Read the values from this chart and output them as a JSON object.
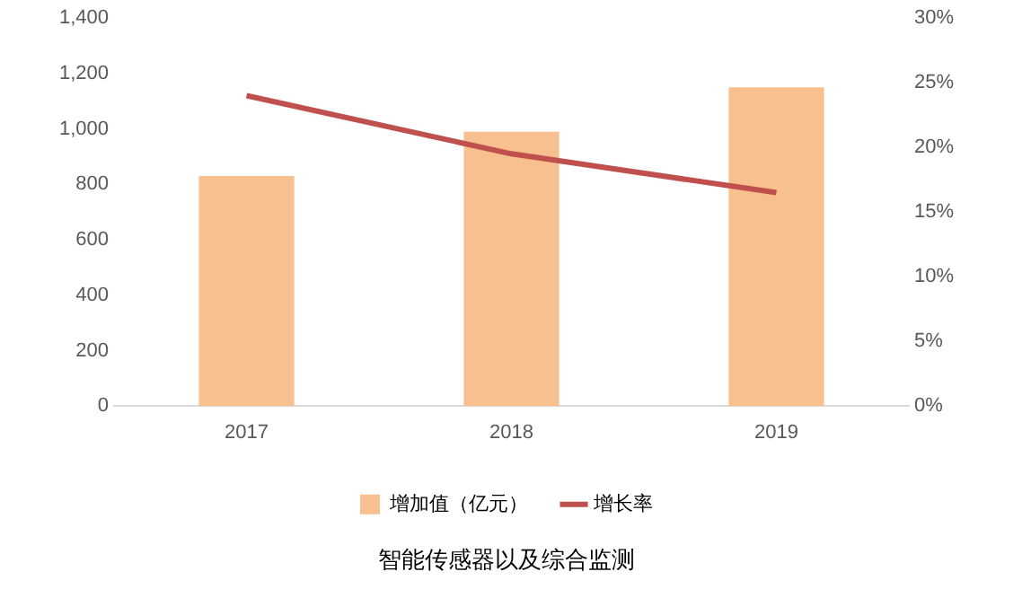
{
  "chart_data": {
    "type": "bar",
    "title": "智能传感器以及综合监测",
    "categories": [
      "2017",
      "2018",
      "2019"
    ],
    "series": [
      {
        "name": "增加值（亿元）",
        "color": "#f8c08f",
        "values": [
          830,
          990,
          1150
        ]
      },
      {
        "name": "增长率",
        "type": "line",
        "axis": "y2",
        "color": "#c0504d",
        "values": [
          24,
          19.5,
          16.5
        ]
      }
    ],
    "ylim": [
      0,
      1400
    ],
    "yticks": [
      0,
      200,
      400,
      600,
      800,
      {
        "value": 1000,
        "label": "1,000"
      },
      {
        "value": 1200,
        "label": "1,200"
      },
      {
        "value": 1400,
        "label": "1,400"
      }
    ],
    "y2lim": [
      0,
      30
    ],
    "y2ticks": [
      {
        "value": 0,
        "label": "0%"
      },
      {
        "value": 5,
        "label": "5%"
      },
      {
        "value": 10,
        "label": "10%"
      },
      {
        "value": 15,
        "label": "15%"
      },
      {
        "value": 20,
        "label": "20%"
      },
      {
        "value": 25,
        "label": "25%"
      },
      {
        "value": 30,
        "label": "30%"
      }
    ],
    "grid": false,
    "legend": "bottom",
    "marker": "none"
  }
}
